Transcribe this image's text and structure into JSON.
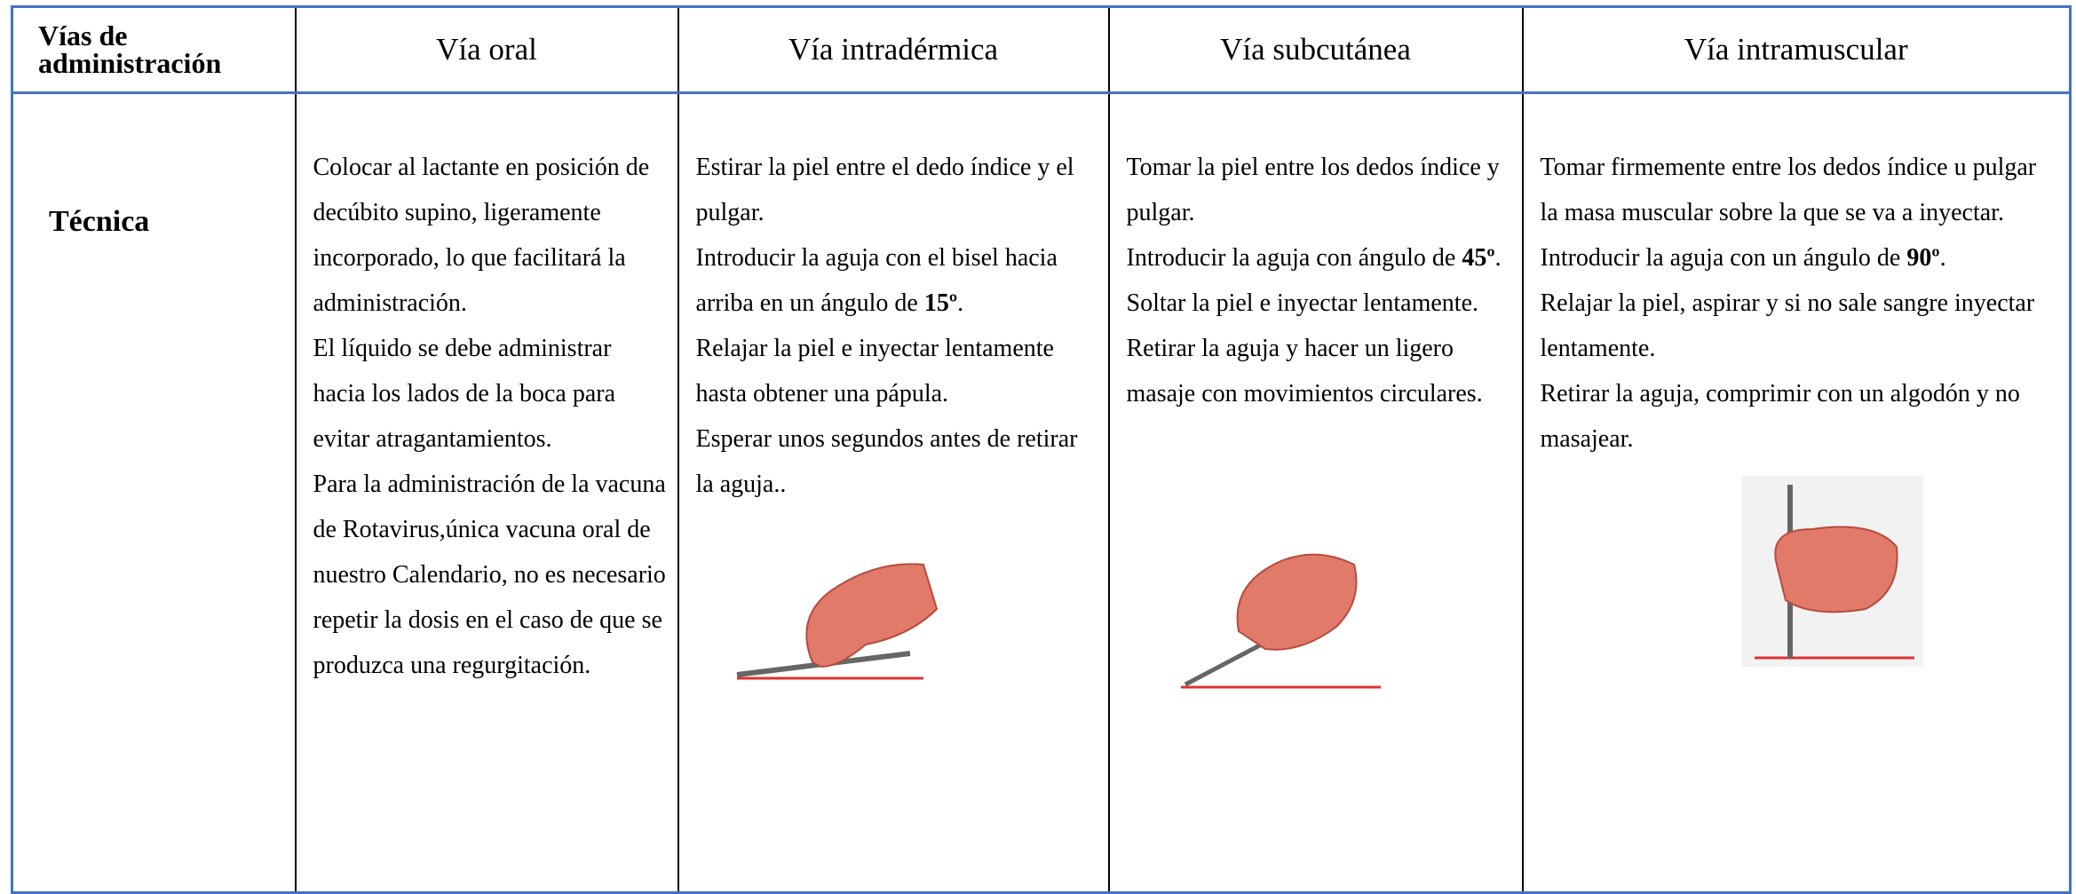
{
  "table": {
    "header": [
      "Vías de administración",
      "Vía oral",
      "Vía intradérmica",
      "Vía subcutánea",
      "Vía intramuscular"
    ],
    "row_label": "Técnica",
    "cells": [
      [
        [
          "Colocar al lactante en posición de decúbito supino, ligeramente incorporado, lo que facilitará la administración."
        ],
        [
          "El líquido se debe administrar hacia los lados de la boca para evitar atragantamientos."
        ],
        [
          "Para la administración de la vacuna de Rotavirus,única vacuna oral de nuestro Calendario,  no es necesario repetir la dosis en el caso de que se produzca una regurgitación."
        ]
      ],
      [
        [
          "Estirar la piel entre el dedo índice y el pulgar."
        ],
        [
          "Introducir la aguja con el bisel hacia arriba en un ángulo de  ",
          {
            "text": "15º",
            "bold": true
          },
          "."
        ],
        [
          "Relajar la piel e inyectar lentamente hasta obtener una pápula."
        ],
        [
          "Esperar unos segundos antes  de retirar la aguja.."
        ]
      ],
      [
        [
          "Tomar la piel entre los dedos índice y pulgar."
        ],
        [
          "Introducir la aguja con ángulo de ",
          {
            "text": "45º",
            "bold": true
          },
          ". Soltar la piel e inyectar lentamente."
        ],
        [
          "Retirar la aguja y hacer un ligero masaje con movimientos circulares."
        ]
      ],
      [
        [
          "Tomar firmemente entre los dedos índice u pulgar la masa muscular sobre la que se va a inyectar."
        ],
        [
          "Introducir la aguja con un ángulo  de ",
          {
            "text": "90º",
            "bold": true
          },
          "."
        ],
        [
          "Relajar la piel, aspirar y si no sale  sangre inyectar lentamente."
        ],
        [
          "Retirar la aguja, comprimir con un  algodón y no masajear."
        ]
      ]
    ]
  }
}
